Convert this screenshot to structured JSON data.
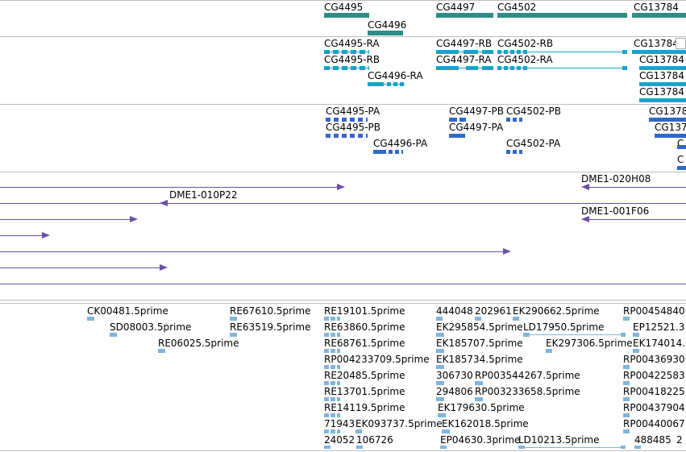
{
  "colors": {
    "gene": "#2e8b8b",
    "mrna": "#1aa3c8",
    "protein": "#3366cc",
    "clone": "#6a4fa8",
    "est": "#7fb6dc",
    "separator": "#bdbdbd"
  },
  "tracks": {
    "genes": {
      "items": [
        {
          "label": "CG4495",
          "strand": "+"
        },
        {
          "label": "CG4496",
          "strand": "+"
        },
        {
          "label": "CG4497",
          "strand": "-"
        },
        {
          "label": "CG4502",
          "strand": "-"
        },
        {
          "label": "CG13784",
          "strand": "-"
        }
      ]
    },
    "transcripts": {
      "items": [
        {
          "label": "CG4495-RA"
        },
        {
          "label": "CG4495-RB"
        },
        {
          "label": "CG4496-RA"
        },
        {
          "label": "CG4497-RB"
        },
        {
          "label": "CG4497-RA"
        },
        {
          "label": "CG4502-RB"
        },
        {
          "label": "CG4502-RA"
        },
        {
          "label": "CG13784-"
        },
        {
          "label": "CG13784"
        },
        {
          "label": "CG13784"
        },
        {
          "label": "CG13784"
        }
      ]
    },
    "proteins": {
      "items": [
        {
          "label": "CG4495-PA"
        },
        {
          "label": "CG4495-PB"
        },
        {
          "label": "CG4496-PA"
        },
        {
          "label": "CG4497-PB"
        },
        {
          "label": "CG4502-PB"
        },
        {
          "label": "CG4497-PA"
        },
        {
          "label": "CG4502-PA"
        },
        {
          "label": "CG1378"
        },
        {
          "label": "CG137"
        },
        {
          "label": "C"
        },
        {
          "label": "C"
        }
      ]
    },
    "clones": {
      "items": [
        {
          "label": "DME1-020H08"
        },
        {
          "label": "DME1-010P22"
        },
        {
          "label": "DME1-001F06"
        }
      ]
    },
    "ests": {
      "items": [
        {
          "label": "CK00481.5prime"
        },
        {
          "label": "RE67610.5prime"
        },
        {
          "label": "RE19101.5prime"
        },
        {
          "label": "444048"
        },
        {
          "label": "202961"
        },
        {
          "label": "EK290662.5prime"
        },
        {
          "label": "RP00454840"
        },
        {
          "label": "SD08003.5prime"
        },
        {
          "label": "RE63519.5prime"
        },
        {
          "label": "RE63860.5prime"
        },
        {
          "label": "EK295854.5prime"
        },
        {
          "label": "LD17950.5prime"
        },
        {
          "label": "EP12521.3"
        },
        {
          "label": "RE06025.5prime"
        },
        {
          "label": "RE68761.5prime"
        },
        {
          "label": "EK185707.5prime"
        },
        {
          "label": "EK297306.5prime"
        },
        {
          "label": "EK174014."
        },
        {
          "label": "RP004233709.5prime"
        },
        {
          "label": "EK185734.5prime"
        },
        {
          "label": "RP00436930"
        },
        {
          "label": "RE20485.5prime"
        },
        {
          "label": "306730"
        },
        {
          "label": "RP003544267.5prime"
        },
        {
          "label": "RP00422583"
        },
        {
          "label": "RE13701.5prime"
        },
        {
          "label": "294806"
        },
        {
          "label": "RP003233658.5prime"
        },
        {
          "label": "RP00418225"
        },
        {
          "label": "RE14119.5prime"
        },
        {
          "label": "EK179630.5prime"
        },
        {
          "label": "RP00437904"
        },
        {
          "label": "71943"
        },
        {
          "label": "EK093737.5prime"
        },
        {
          "label": "EK162018.5prime"
        },
        {
          "label": "RP00440067"
        },
        {
          "label": "24052"
        },
        {
          "label": "106726"
        },
        {
          "label": "EP04630.3prime"
        },
        {
          "label": "LD10213.5prime"
        },
        {
          "label": "488485"
        },
        {
          "label": "2"
        }
      ]
    }
  }
}
